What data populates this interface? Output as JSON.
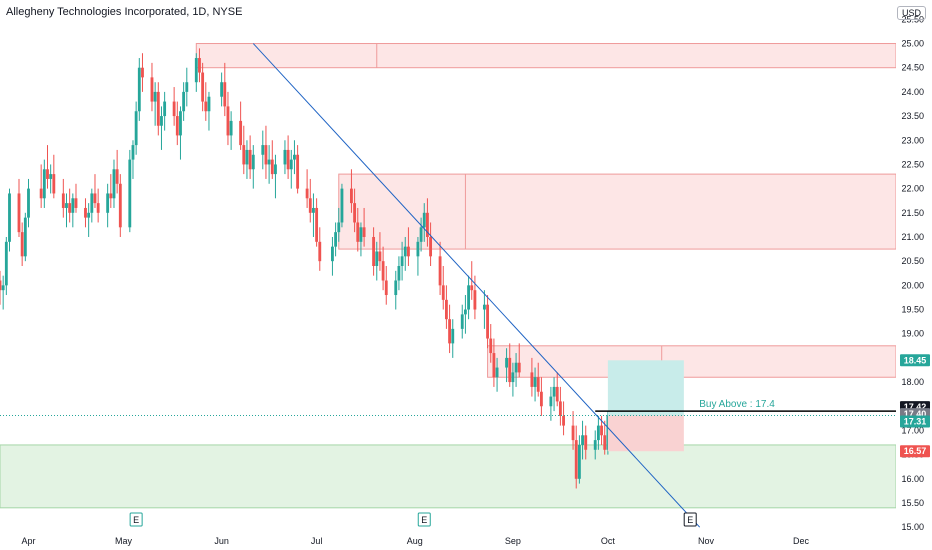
{
  "header": {
    "title": "Allegheny Technologies Incorporated, 1D, NYSE",
    "currency": "USD"
  },
  "colors": {
    "up": "#26a69a",
    "down": "#ef5350",
    "supply_fill": "#fde6e6",
    "supply_stroke": "#ef9a9a",
    "demand_fill": "#e3f3e3",
    "demand_stroke": "#a5d6a7",
    "trend": "#1e63c4",
    "target_fill": "#c8ecea",
    "stop_fill": "#f9d2d2"
  },
  "chart_data": {
    "type": "candlestick",
    "title": "Allegheny Technologies Incorporated, 1D, NYSE",
    "ylim": [
      14.9,
      25.9
    ],
    "y_ticks": [
      15.0,
      15.5,
      16.0,
      16.5,
      17.0,
      17.5,
      18.0,
      18.5,
      19.0,
      19.5,
      20.0,
      20.5,
      21.0,
      21.5,
      22.0,
      22.5,
      23.0,
      23.5,
      24.0,
      24.5,
      25.0,
      25.5
    ],
    "y_tick_labels": [
      "15.00",
      "15.50",
      "16.00",
      "16.50",
      "17.00",
      "17.50",
      "18.00",
      "18.50",
      "19.00",
      "19.50",
      "20.00",
      "20.50",
      "21.00",
      "21.50",
      "22.00",
      "22.50",
      "23.00",
      "23.50",
      "24.00",
      "24.50",
      "25.00",
      "25.50"
    ],
    "x_range": [
      "2021-03-23",
      "2021-12-31"
    ],
    "x_ticks": [
      {
        "label": "Apr",
        "date": "2021-04-01"
      },
      {
        "label": "May",
        "date": "2021-05-01"
      },
      {
        "label": "Jun",
        "date": "2021-06-01"
      },
      {
        "label": "Jul",
        "date": "2021-07-01"
      },
      {
        "label": "Aug",
        "date": "2021-08-01"
      },
      {
        "label": "Sep",
        "date": "2021-09-01"
      },
      {
        "label": "Oct",
        "date": "2021-10-01"
      },
      {
        "label": "Nov",
        "date": "2021-11-01"
      },
      {
        "label": "Dec",
        "date": "2021-12-01"
      }
    ],
    "earnings_markers": [
      {
        "date": "2021-05-05",
        "label": "E"
      },
      {
        "date": "2021-08-04",
        "label": "E"
      },
      {
        "date": "2021-10-27",
        "label": "E"
      }
    ],
    "zones": [
      {
        "kind": "supply",
        "x_start": "2021-05-24",
        "x_end": "2021-12-31",
        "y_low": 24.5,
        "y_high": 25.0,
        "divider": "2021-07-20"
      },
      {
        "kind": "supply",
        "x_start": "2021-07-08",
        "x_end": "2021-12-31",
        "y_low": 20.75,
        "y_high": 22.3,
        "divider": "2021-08-17"
      },
      {
        "kind": "supply",
        "x_start": "2021-08-24",
        "x_end": "2021-12-31",
        "y_low": 18.1,
        "y_high": 18.75,
        "divider": "2021-10-18"
      },
      {
        "kind": "demand",
        "x_start": "2021-03-23",
        "x_end": "2021-12-31",
        "y_low": 15.4,
        "y_high": 16.7
      }
    ],
    "trendline": {
      "start": {
        "date": "2021-06-11",
        "value": 25.0
      },
      "end": {
        "date": "2021-10-30",
        "value": 15.0
      }
    },
    "position": {
      "x_start": "2021-10-01",
      "x_end": "2021-10-25",
      "entry": 17.31,
      "target": 18.45,
      "stop": 16.57
    },
    "buy_line": {
      "x_start": "2021-09-27",
      "x_end": "2021-12-31",
      "value": 17.4,
      "label": "Buy Above : 17.4"
    },
    "current_price": 17.31,
    "price_tags": [
      {
        "value": 18.45,
        "label": "18.45",
        "color": "#26a69a"
      },
      {
        "value": 17.42,
        "label": "17.42",
        "color": "#131722"
      },
      {
        "value": 17.4,
        "label": "17.40",
        "color": "#787b86"
      },
      {
        "value": 17.31,
        "label": "17.31",
        "color": "#26a69a"
      },
      {
        "value": 16.57,
        "label": "16.57",
        "color": "#ef5350"
      }
    ],
    "candles": [
      [
        "2021-03-23",
        20.1,
        20.3,
        19.6,
        19.9
      ],
      [
        "2021-03-24",
        19.9,
        20.2,
        19.5,
        20.0
      ],
      [
        "2021-03-25",
        20.0,
        21.0,
        19.8,
        20.9
      ],
      [
        "2021-03-26",
        20.9,
        22.0,
        20.7,
        21.9
      ],
      [
        "2021-03-29",
        21.9,
        22.2,
        21.0,
        21.1
      ],
      [
        "2021-03-30",
        21.1,
        21.3,
        20.4,
        20.6
      ],
      [
        "2021-03-31",
        20.6,
        21.5,
        20.5,
        21.4
      ],
      [
        "2021-04-01",
        21.4,
        22.2,
        21.2,
        22.0
      ],
      [
        "2021-04-05",
        22.0,
        22.5,
        21.6,
        21.8
      ],
      [
        "2021-04-06",
        21.8,
        22.6,
        21.6,
        22.4
      ],
      [
        "2021-04-07",
        22.4,
        22.9,
        22.0,
        22.2
      ],
      [
        "2021-04-08",
        22.2,
        22.5,
        21.9,
        22.3
      ],
      [
        "2021-04-09",
        22.3,
        22.7,
        21.8,
        21.9
      ],
      [
        "2021-04-12",
        21.9,
        22.2,
        21.4,
        21.6
      ],
      [
        "2021-04-13",
        21.6,
        21.9,
        21.2,
        21.7
      ],
      [
        "2021-04-14",
        21.7,
        22.0,
        21.3,
        21.5
      ],
      [
        "2021-04-15",
        21.5,
        21.9,
        21.2,
        21.8
      ],
      [
        "2021-04-16",
        21.8,
        22.1,
        21.5,
        21.6
      ],
      [
        "2021-04-19",
        21.6,
        21.8,
        21.2,
        21.4
      ],
      [
        "2021-04-20",
        21.4,
        21.7,
        21.0,
        21.5
      ],
      [
        "2021-04-21",
        21.5,
        22.0,
        21.3,
        21.9
      ],
      [
        "2021-04-22",
        21.9,
        22.3,
        21.6,
        21.7
      ],
      [
        "2021-04-23",
        21.7,
        22.0,
        21.3,
        21.5
      ],
      [
        "2021-04-26",
        21.5,
        22.1,
        21.2,
        21.9
      ],
      [
        "2021-04-27",
        21.9,
        22.3,
        21.6,
        21.8
      ],
      [
        "2021-04-28",
        21.8,
        22.6,
        21.6,
        22.4
      ],
      [
        "2021-04-29",
        22.4,
        22.8,
        21.9,
        22.1
      ],
      [
        "2021-04-30",
        22.1,
        22.3,
        21.0,
        21.2
      ],
      [
        "2021-05-03",
        21.2,
        22.8,
        21.1,
        22.6
      ],
      [
        "2021-05-04",
        22.6,
        23.0,
        22.2,
        22.9
      ],
      [
        "2021-05-05",
        22.9,
        23.8,
        22.7,
        23.6
      ],
      [
        "2021-05-06",
        23.6,
        24.7,
        23.4,
        24.5
      ],
      [
        "2021-05-07",
        24.5,
        24.8,
        24.0,
        24.3
      ],
      [
        "2021-05-10",
        24.3,
        24.6,
        23.6,
        23.8
      ],
      [
        "2021-05-11",
        23.8,
        24.2,
        23.3,
        24.0
      ],
      [
        "2021-05-12",
        24.0,
        24.2,
        23.1,
        23.3
      ],
      [
        "2021-05-13",
        23.3,
        23.7,
        22.8,
        23.5
      ],
      [
        "2021-05-14",
        23.5,
        24.0,
        23.2,
        23.8
      ],
      [
        "2021-05-17",
        23.8,
        24.1,
        23.3,
        23.5
      ],
      [
        "2021-05-18",
        23.5,
        23.8,
        22.9,
        23.1
      ],
      [
        "2021-05-19",
        23.1,
        23.7,
        22.6,
        23.6
      ],
      [
        "2021-05-20",
        23.6,
        24.2,
        23.4,
        24.0
      ],
      [
        "2021-05-21",
        24.0,
        24.5,
        23.7,
        24.2
      ],
      [
        "2021-05-24",
        24.2,
        24.8,
        24.0,
        24.7
      ],
      [
        "2021-05-25",
        24.7,
        24.9,
        24.2,
        24.4
      ],
      [
        "2021-05-26",
        24.4,
        24.6,
        23.6,
        23.8
      ],
      [
        "2021-05-27",
        23.8,
        24.2,
        23.4,
        23.6
      ],
      [
        "2021-05-28",
        23.6,
        24.0,
        23.2,
        23.9
      ],
      [
        "2021-06-01",
        23.9,
        24.4,
        23.7,
        24.2
      ],
      [
        "2021-06-02",
        24.2,
        24.6,
        23.5,
        23.7
      ],
      [
        "2021-06-03",
        23.7,
        24.0,
        22.9,
        23.1
      ],
      [
        "2021-06-04",
        23.1,
        23.6,
        22.8,
        23.4
      ],
      [
        "2021-06-07",
        23.4,
        23.8,
        22.8,
        22.9
      ],
      [
        "2021-06-08",
        22.9,
        23.3,
        22.3,
        22.5
      ],
      [
        "2021-06-09",
        22.5,
        23.0,
        22.2,
        22.8
      ],
      [
        "2021-06-10",
        22.8,
        23.1,
        22.2,
        22.4
      ],
      [
        "2021-06-11",
        22.4,
        22.9,
        22.0,
        22.7
      ],
      [
        "2021-06-14",
        22.7,
        23.2,
        22.4,
        22.9
      ],
      [
        "2021-06-15",
        22.9,
        23.3,
        22.2,
        22.5
      ],
      [
        "2021-06-16",
        22.5,
        22.9,
        22.1,
        22.6
      ],
      [
        "2021-06-17",
        22.6,
        23.0,
        22.2,
        22.3
      ],
      [
        "2021-06-18",
        22.3,
        22.7,
        21.8,
        22.5
      ],
      [
        "2021-06-21",
        22.5,
        23.0,
        22.3,
        22.8
      ],
      [
        "2021-06-22",
        22.8,
        23.1,
        22.2,
        22.4
      ],
      [
        "2021-06-23",
        22.4,
        22.8,
        22.0,
        22.6
      ],
      [
        "2021-06-24",
        22.6,
        23.0,
        22.3,
        22.7
      ],
      [
        "2021-06-25",
        22.7,
        22.9,
        21.9,
        22.0
      ],
      [
        "2021-06-28",
        22.0,
        22.4,
        21.6,
        21.8
      ],
      [
        "2021-06-29",
        21.8,
        22.2,
        21.3,
        21.5
      ],
      [
        "2021-06-30",
        21.5,
        21.9,
        21.0,
        21.6
      ],
      [
        "2021-07-01",
        21.6,
        21.8,
        20.8,
        20.9
      ],
      [
        "2021-07-02",
        20.9,
        21.2,
        20.3,
        20.5
      ],
      [
        "2021-07-06",
        20.5,
        21.0,
        20.2,
        20.8
      ],
      [
        "2021-07-07",
        20.8,
        21.3,
        20.6,
        21.1
      ],
      [
        "2021-07-08",
        21.1,
        21.6,
        20.9,
        21.3
      ],
      [
        "2021-07-09",
        21.3,
        22.1,
        21.2,
        22.0
      ],
      [
        "2021-07-12",
        22.0,
        22.4,
        21.5,
        21.7
      ],
      [
        "2021-07-13",
        21.7,
        22.0,
        21.1,
        21.3
      ],
      [
        "2021-07-14",
        21.3,
        21.6,
        20.7,
        20.9
      ],
      [
        "2021-07-15",
        20.9,
        21.3,
        20.6,
        21.2
      ],
      [
        "2021-07-16",
        21.2,
        21.6,
        20.8,
        21.0
      ],
      [
        "2021-07-19",
        21.0,
        21.2,
        20.2,
        20.4
      ],
      [
        "2021-07-20",
        20.4,
        20.9,
        20.1,
        20.7
      ],
      [
        "2021-07-21",
        20.7,
        21.1,
        20.3,
        20.5
      ],
      [
        "2021-07-22",
        20.5,
        20.8,
        19.9,
        20.1
      ],
      [
        "2021-07-23",
        20.1,
        20.4,
        19.6,
        19.8
      ],
      [
        "2021-07-26",
        19.8,
        20.3,
        19.5,
        20.1
      ],
      [
        "2021-07-27",
        20.1,
        20.6,
        19.9,
        20.4
      ],
      [
        "2021-07-28",
        20.4,
        20.9,
        20.1,
        20.6
      ],
      [
        "2021-07-29",
        20.6,
        21.0,
        20.3,
        20.8
      ],
      [
        "2021-07-30",
        20.8,
        21.2,
        20.4,
        20.6
      ],
      [
        "2021-08-02",
        20.6,
        21.0,
        20.2,
        20.9
      ],
      [
        "2021-08-03",
        20.9,
        21.4,
        20.7,
        21.2
      ],
      [
        "2021-08-04",
        21.2,
        21.7,
        20.9,
        21.5
      ],
      [
        "2021-08-05",
        21.5,
        21.8,
        20.8,
        21.0
      ],
      [
        "2021-08-06",
        21.0,
        21.3,
        20.4,
        20.6
      ],
      [
        "2021-08-09",
        20.6,
        20.9,
        19.8,
        20.0
      ],
      [
        "2021-08-10",
        20.0,
        20.4,
        19.5,
        19.7
      ],
      [
        "2021-08-11",
        19.7,
        20.0,
        19.1,
        19.3
      ],
      [
        "2021-08-12",
        19.3,
        19.6,
        18.6,
        18.8
      ],
      [
        "2021-08-13",
        18.8,
        19.3,
        18.5,
        19.1
      ],
      [
        "2021-08-16",
        19.1,
        19.6,
        18.9,
        19.4
      ],
      [
        "2021-08-17",
        19.4,
        19.8,
        19.0,
        19.5
      ],
      [
        "2021-08-18",
        19.5,
        20.2,
        19.3,
        20.0
      ],
      [
        "2021-08-19",
        20.0,
        20.5,
        19.7,
        19.9
      ],
      [
        "2021-08-20",
        19.9,
        20.2,
        19.3,
        19.5
      ],
      [
        "2021-08-23",
        19.5,
        19.9,
        19.1,
        19.6
      ],
      [
        "2021-08-24",
        19.6,
        19.8,
        18.7,
        18.9
      ],
      [
        "2021-08-25",
        18.9,
        19.2,
        18.4,
        18.6
      ],
      [
        "2021-08-26",
        18.6,
        18.9,
        17.9,
        18.1
      ],
      [
        "2021-08-27",
        18.1,
        18.5,
        17.8,
        18.3
      ],
      [
        "2021-08-30",
        18.3,
        18.7,
        18.0,
        18.5
      ],
      [
        "2021-08-31",
        18.5,
        18.8,
        17.9,
        18.0
      ],
      [
        "2021-09-01",
        18.0,
        18.4,
        17.7,
        18.2
      ],
      [
        "2021-09-02",
        18.2,
        18.6,
        17.9,
        18.4
      ],
      [
        "2021-09-03",
        18.4,
        18.8,
        18.1,
        18.2
      ],
      [
        "2021-09-07",
        18.2,
        18.5,
        17.7,
        17.9
      ],
      [
        "2021-09-08",
        17.9,
        18.3,
        17.6,
        18.1
      ],
      [
        "2021-09-09",
        18.1,
        18.4,
        17.7,
        17.8
      ],
      [
        "2021-09-10",
        17.8,
        18.1,
        17.3,
        17.5
      ],
      [
        "2021-09-13",
        17.5,
        17.9,
        17.2,
        17.7
      ],
      [
        "2021-09-14",
        17.7,
        18.1,
        17.4,
        17.9
      ],
      [
        "2021-09-15",
        17.9,
        18.2,
        17.5,
        17.6
      ],
      [
        "2021-09-16",
        17.6,
        17.9,
        17.1,
        17.3
      ],
      [
        "2021-09-17",
        17.3,
        17.6,
        16.9,
        17.1
      ],
      [
        "2021-09-20",
        17.1,
        17.4,
        16.6,
        16.8
      ],
      [
        "2021-09-21",
        16.8,
        17.1,
        15.8,
        16.0
      ],
      [
        "2021-09-22",
        16.0,
        16.9,
        15.9,
        16.7
      ],
      [
        "2021-09-23",
        16.7,
        17.2,
        16.4,
        16.9
      ],
      [
        "2021-09-24",
        16.9,
        17.1,
        16.4,
        16.6
      ],
      [
        "2021-09-27",
        16.6,
        17.0,
        16.4,
        16.8
      ],
      [
        "2021-09-28",
        16.8,
        17.3,
        16.6,
        17.1
      ],
      [
        "2021-09-29",
        17.1,
        17.3,
        16.7,
        16.9
      ],
      [
        "2021-09-30",
        16.9,
        17.2,
        16.5,
        16.6
      ],
      [
        "2021-10-01",
        16.6,
        17.4,
        16.5,
        17.31
      ]
    ]
  }
}
